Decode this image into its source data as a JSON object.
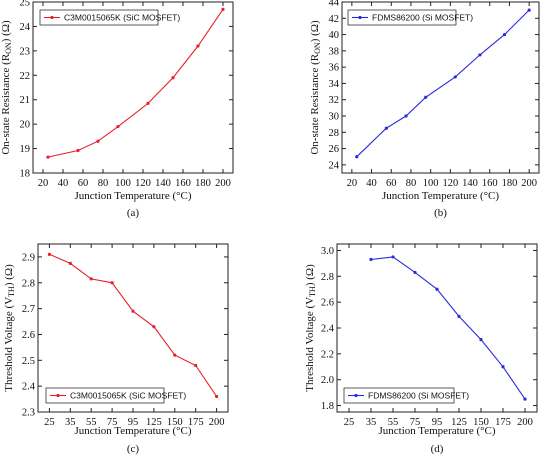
{
  "chart_data": [
    {
      "type": "line",
      "caption": "(a)",
      "xlabel": "Junction Temperature (°C)",
      "ylabel": "On-state Resistance (R_ON) (Ω)",
      "ylabel_parts": [
        "On-state Resistance (R",
        "ON",
        ") (Ω)"
      ],
      "xlim": [
        10,
        210
      ],
      "ylim": [
        18,
        25
      ],
      "xticks": [
        20,
        40,
        60,
        80,
        100,
        120,
        140,
        160,
        180,
        200
      ],
      "yticks": [
        18,
        19,
        20,
        21,
        22,
        23,
        24,
        25
      ],
      "legend_position": "top-left",
      "series": [
        {
          "name": "C3M0015065K (SiC MOSFET)",
          "color": "#e8202a",
          "x": [
            25,
            55,
            75,
            95,
            125,
            150,
            175,
            200
          ],
          "y": [
            18.65,
            18.92,
            19.3,
            19.9,
            20.85,
            21.9,
            23.2,
            24.7
          ]
        }
      ]
    },
    {
      "type": "line",
      "caption": "(b)",
      "xlabel": "Junction Temperature (°C)",
      "ylabel": "On-state Resistance (R_ON) (Ω)",
      "ylabel_parts": [
        "On-state Resistance (R",
        "ON",
        ") (Ω)"
      ],
      "xlim": [
        10,
        210
      ],
      "ylim": [
        23,
        44
      ],
      "xticks": [
        20,
        40,
        60,
        80,
        100,
        120,
        140,
        160,
        180,
        200
      ],
      "yticks": [
        24,
        26,
        28,
        30,
        32,
        34,
        36,
        38,
        40,
        42,
        44
      ],
      "legend_position": "top-left",
      "series": [
        {
          "name": "FDMS86200 (Si MOSFET)",
          "color": "#2b2bd8",
          "x": [
            25,
            55,
            75,
            95,
            125,
            150,
            175,
            200
          ],
          "y": [
            25.0,
            28.5,
            30.0,
            32.3,
            34.8,
            37.5,
            40.0,
            43.0
          ]
        }
      ]
    },
    {
      "type": "line",
      "caption": "(c)",
      "xlabel": "Junction Temperature (°C)",
      "ylabel": "Threshold Voltage (V_TH) (Ω)",
      "ylabel_parts": [
        "Threshold Voltage (V",
        "TH",
        ") (Ω)"
      ],
      "xlim": [
        15,
        210
      ],
      "ylim": [
        2.3,
        2.95
      ],
      "xticks": [
        25,
        35,
        55,
        75,
        95,
        125,
        150,
        175,
        200
      ],
      "xtick_labels": [
        "25",
        "35",
        "55",
        "75",
        "95",
        "125",
        "150",
        "175",
        "200"
      ],
      "yticks": [
        2.3,
        2.4,
        2.5,
        2.6,
        2.7,
        2.8,
        2.9
      ],
      "ytick_labels": [
        "2.3",
        "2.4",
        "2.5",
        "2.6",
        "2.7",
        "2.8",
        "2.9"
      ],
      "category_axis": true,
      "legend_position": "bottom-left",
      "series": [
        {
          "name": "C3M0015065K (SiC MOSFET)",
          "color": "#e8202a",
          "x": [
            25,
            35,
            55,
            75,
            95,
            125,
            150,
            175,
            200
          ],
          "y": [
            2.91,
            2.875,
            2.815,
            2.8,
            2.69,
            2.63,
            2.52,
            2.48,
            2.36
          ]
        }
      ]
    },
    {
      "type": "line",
      "caption": "(d)",
      "xlabel": "Junction Temperature (°C)",
      "ylabel": "Threshold Voltage (V_TH) (Ω)",
      "ylabel_parts": [
        "Threshold Voltage (V",
        "TH",
        ") (Ω)"
      ],
      "xlim": [
        15,
        210
      ],
      "ylim": [
        1.75,
        3.05
      ],
      "xticks": [
        25,
        35,
        55,
        75,
        95,
        125,
        150,
        175,
        200
      ],
      "xtick_labels": [
        "25",
        "35",
        "55",
        "75",
        "95",
        "125",
        "150",
        "175",
        "200"
      ],
      "yticks": [
        1.8,
        2.0,
        2.2,
        2.4,
        2.6,
        2.8,
        3.0
      ],
      "ytick_labels": [
        "1.8",
        "2.0",
        "2.2",
        "2.4",
        "2.6",
        "2.8",
        "3.0"
      ],
      "category_axis": true,
      "legend_position": "bottom-left",
      "series": [
        {
          "name": "FDMS86200 (Si MOSFET)",
          "color": "#2b2bd8",
          "x": [
            35,
            55,
            75,
            95,
            125,
            150,
            175,
            200
          ],
          "y": [
            2.93,
            2.95,
            2.83,
            2.7,
            2.49,
            2.31,
            2.1,
            1.85
          ]
        }
      ]
    }
  ]
}
